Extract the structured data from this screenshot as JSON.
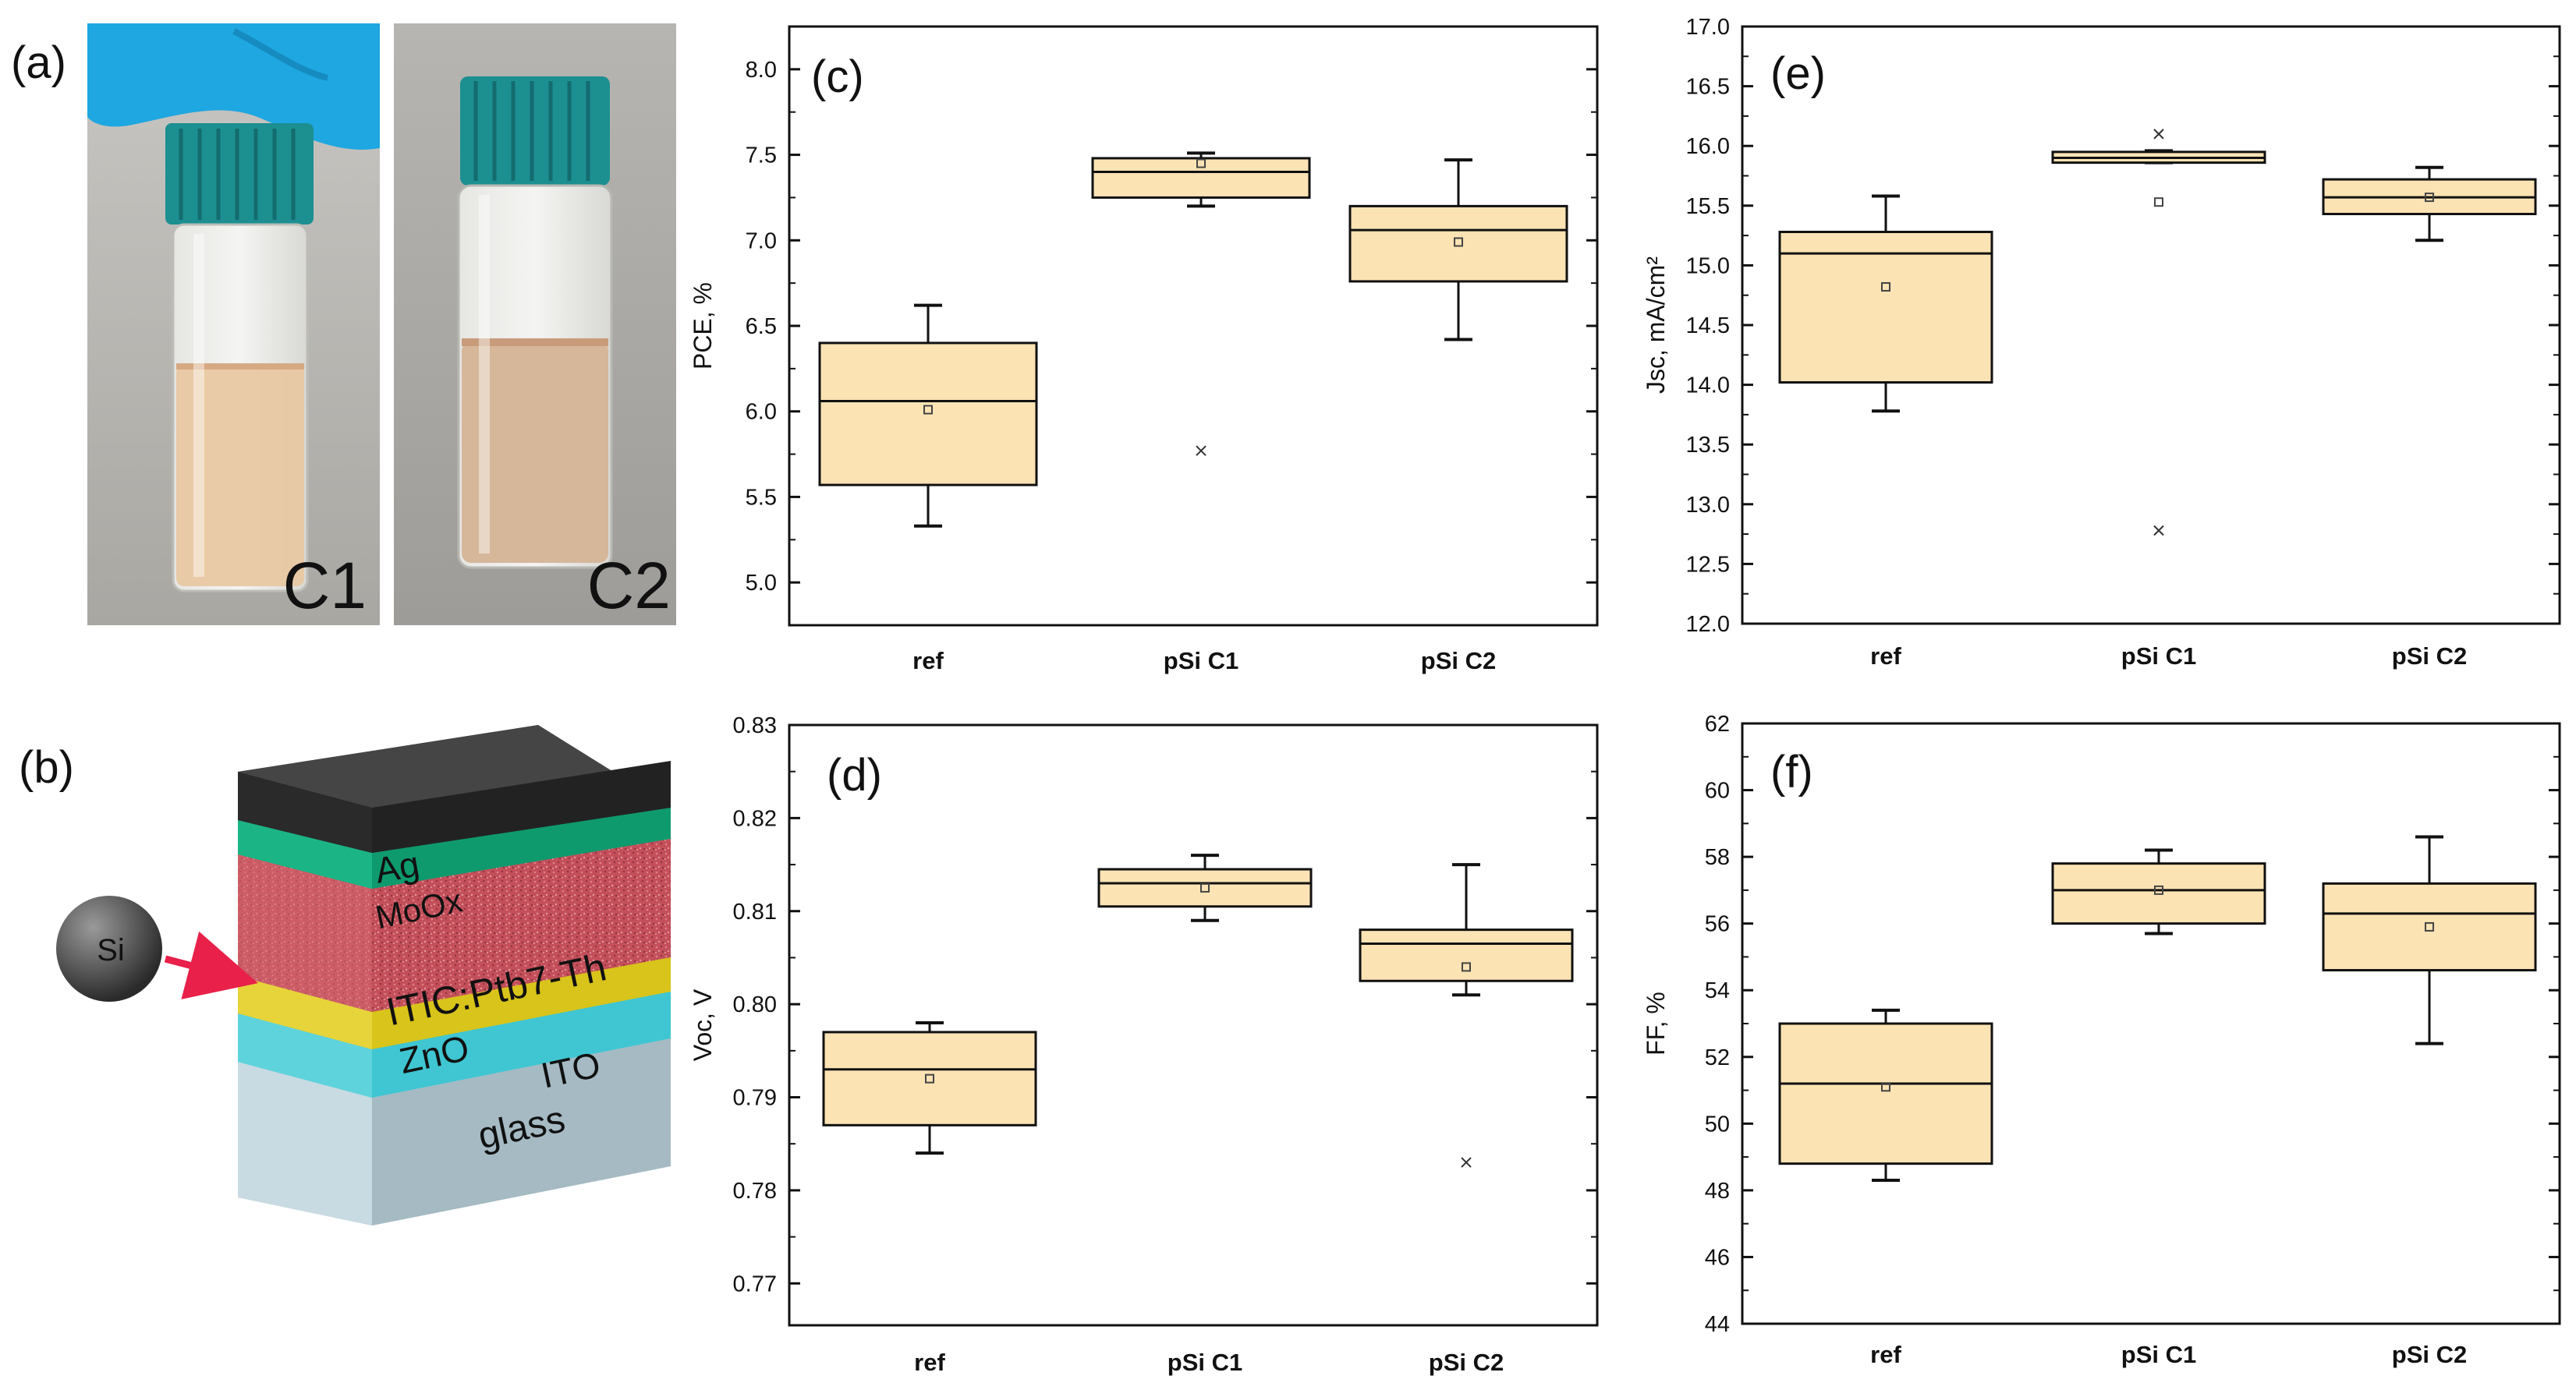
{
  "panel_labels": {
    "a": "(a)",
    "b": "(b)",
    "c": "(c)",
    "d": "(d)",
    "e": "(e)",
    "f": "(f)"
  },
  "photos": {
    "vial1_label": "C1",
    "vial2_label": "C2"
  },
  "device": {
    "layers": {
      "ag": "Ag",
      "moox": "MoOx",
      "active": "ITIC:Ptb7-Th",
      "zno": "ZnO",
      "ito": "ITO",
      "glass": "glass"
    },
    "si_particle": "Si"
  },
  "colors": {
    "box_fill": "#FCE3B4",
    "box_stroke": "#111111",
    "axis": "#111111",
    "glove": "#1EA7E0",
    "cap": "#1C8F91",
    "liquid_c1": "#E9C7A0",
    "liquid_c2": "#D6B79A",
    "ag": "#2E2E2E",
    "moox": "#0F9A6E",
    "active": "#C8505C",
    "zno": "#D8C41A",
    "ito": "#3FC6D2",
    "glass": "#B8CDD6",
    "arrow": "#E8204A"
  },
  "chart_data": [
    {
      "id": "c",
      "type": "box",
      "panel": "(c)",
      "ylabel": "PCE, %",
      "categories": [
        "ref",
        "pSi  C1",
        "pSi  C2"
      ],
      "ylim": [
        4.75,
        8.25
      ],
      "yticks": [
        5.0,
        5.5,
        6.0,
        6.5,
        7.0,
        7.5,
        8.0
      ],
      "yticklabels": [
        "5.0",
        "5.5",
        "6.0",
        "6.5",
        "7.0",
        "7.5",
        "8.0"
      ],
      "boxes": [
        {
          "q1": 5.57,
          "median": 6.06,
          "q3": 6.4,
          "whisker_low": 5.33,
          "whisker_high": 6.62,
          "mean": 6.01,
          "outliers": []
        },
        {
          "q1": 7.25,
          "median": 7.4,
          "q3": 7.48,
          "whisker_low": 7.2,
          "whisker_high": 7.51,
          "mean": 7.45,
          "outliers": [
            5.77
          ]
        },
        {
          "q1": 6.76,
          "median": 7.06,
          "q3": 7.2,
          "whisker_low": 6.42,
          "whisker_high": 7.47,
          "mean": 6.99,
          "outliers": []
        }
      ]
    },
    {
      "id": "d",
      "type": "box",
      "panel": "(d)",
      "ylabel": "Voc, V",
      "categories": [
        "ref",
        "pSi  C1",
        "pSi  C2"
      ],
      "ylim": [
        0.7655,
        0.83
      ],
      "yticks": [
        0.77,
        0.78,
        0.79,
        0.8,
        0.81,
        0.82,
        0.83
      ],
      "yticklabels": [
        "0.77",
        "0.78",
        "0.79",
        "0.80",
        "0.81",
        "0.82",
        "0.83"
      ],
      "boxes": [
        {
          "q1": 0.787,
          "median": 0.793,
          "q3": 0.797,
          "whisker_low": 0.784,
          "whisker_high": 0.798,
          "mean": 0.792,
          "outliers": []
        },
        {
          "q1": 0.8105,
          "median": 0.813,
          "q3": 0.8145,
          "whisker_low": 0.809,
          "whisker_high": 0.816,
          "mean": 0.8125,
          "outliers": []
        },
        {
          "q1": 0.8025,
          "median": 0.8065,
          "q3": 0.808,
          "whisker_low": 0.801,
          "whisker_high": 0.815,
          "mean": 0.804,
          "outliers": [
            0.783
          ]
        }
      ]
    },
    {
      "id": "e",
      "type": "box",
      "panel": "(e)",
      "ylabel": "Jsc, mA/cm²",
      "categories": [
        "ref",
        "pSi  C1",
        "pSi  C2"
      ],
      "ylim": [
        12.0,
        17.0
      ],
      "yticks": [
        12.0,
        12.5,
        13.0,
        13.5,
        14.0,
        14.5,
        15.0,
        15.5,
        16.0,
        16.5,
        17.0
      ],
      "yticklabels": [
        "12.0",
        "12.5",
        "13.0",
        "13.5",
        "14.0",
        "14.5",
        "15.0",
        "15.5",
        "16.0",
        "16.5",
        "17.0"
      ],
      "boxes": [
        {
          "q1": 14.02,
          "median": 15.1,
          "q3": 15.28,
          "whisker_low": 13.78,
          "whisker_high": 15.58,
          "mean": 14.82,
          "outliers": []
        },
        {
          "q1": 15.86,
          "median": 15.9,
          "q3": 15.95,
          "whisker_low": 15.86,
          "whisker_high": 15.96,
          "mean": 15.53,
          "outliers": [
            16.1,
            12.78
          ]
        },
        {
          "q1": 15.43,
          "median": 15.57,
          "q3": 15.72,
          "whisker_low": 15.21,
          "whisker_high": 15.82,
          "mean": 15.57,
          "outliers": []
        }
      ]
    },
    {
      "id": "f",
      "type": "box",
      "panel": "(f)",
      "ylabel": "FF, %",
      "categories": [
        "ref",
        "pSi  C1",
        "pSi  C2"
      ],
      "ylim": [
        44,
        62
      ],
      "yticks": [
        44,
        46,
        48,
        50,
        52,
        54,
        56,
        58,
        60,
        62
      ],
      "yticklabels": [
        "44",
        "46",
        "48",
        "50",
        "52",
        "54",
        "56",
        "58",
        "60",
        "62"
      ],
      "boxes": [
        {
          "q1": 48.8,
          "median": 51.2,
          "q3": 53.0,
          "whisker_low": 48.3,
          "whisker_high": 53.4,
          "mean": 51.1,
          "outliers": []
        },
        {
          "q1": 56.0,
          "median": 57.0,
          "q3": 57.8,
          "whisker_low": 55.7,
          "whisker_high": 58.2,
          "mean": 57.0,
          "outliers": []
        },
        {
          "q1": 54.6,
          "median": 56.3,
          "q3": 57.2,
          "whisker_low": 52.4,
          "whisker_high": 58.6,
          "mean": 55.9,
          "outliers": []
        }
      ]
    }
  ]
}
